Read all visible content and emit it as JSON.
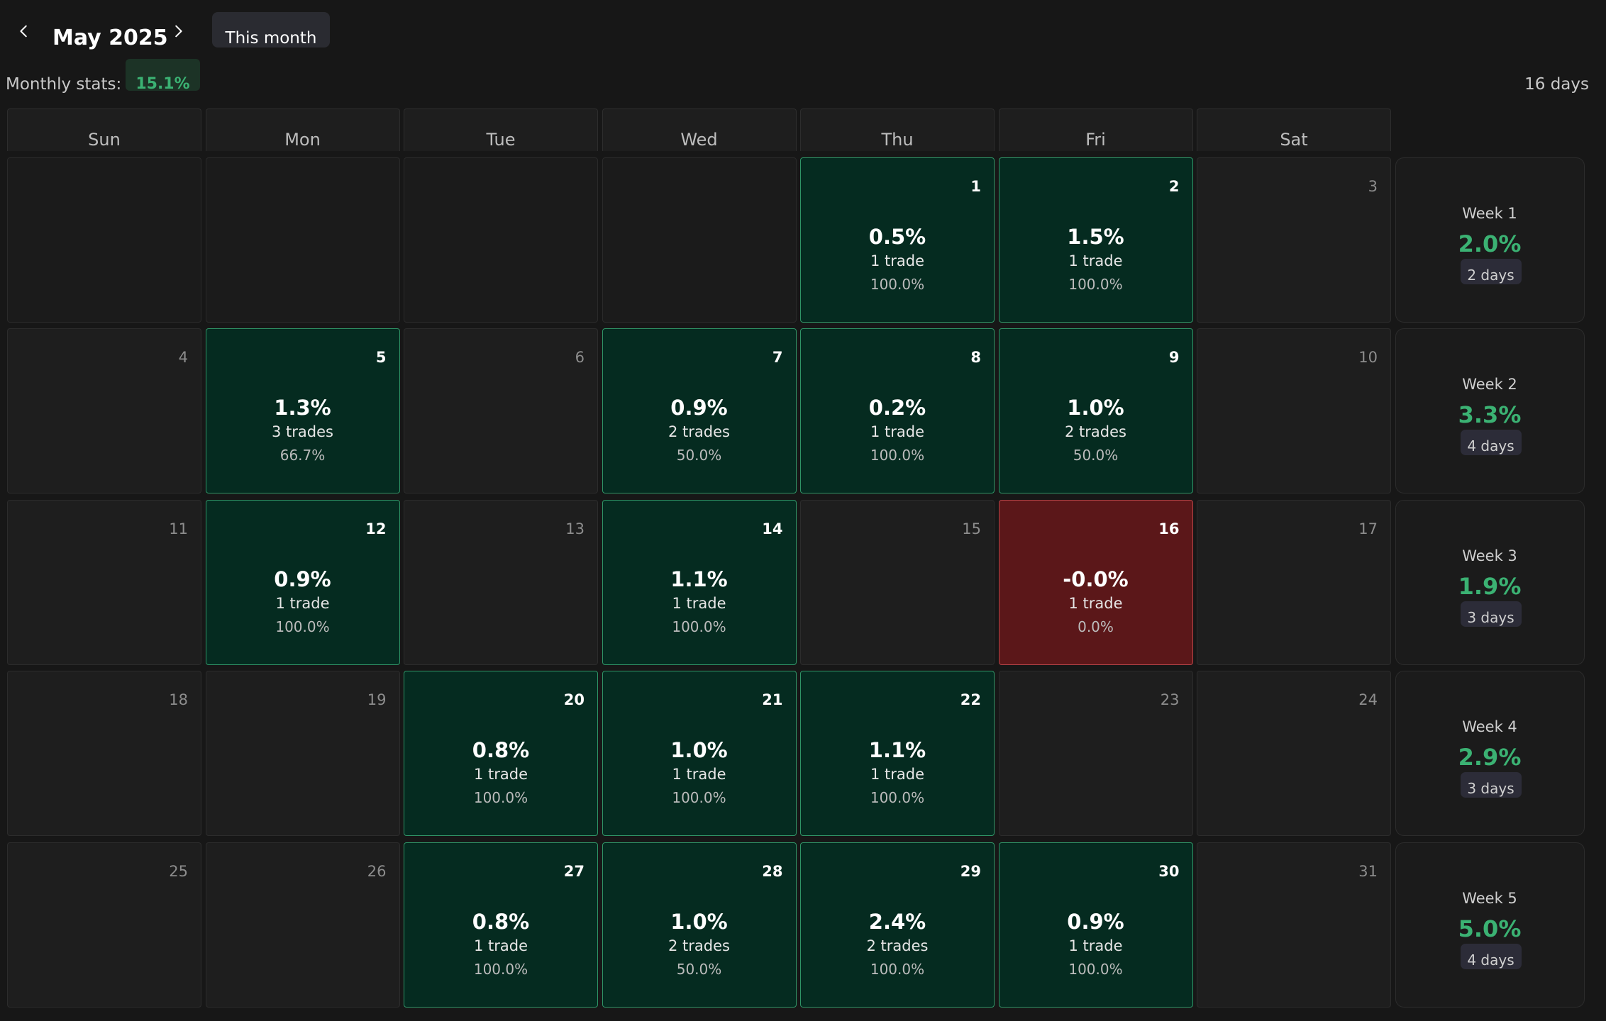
{
  "header": {
    "month_title": "May 2025",
    "this_month_label": "This month",
    "monthly_stats_label": "Monthly stats:",
    "monthly_stats_value": "15.1%",
    "days_count": "16 days"
  },
  "weekdays": [
    "Sun",
    "Mon",
    "Tue",
    "Wed",
    "Thu",
    "Fri",
    "Sat"
  ],
  "colors": {
    "positive_bg": "#052b20",
    "positive_border": "#2f9466",
    "negative_bg": "#5b1719",
    "negative_border": "#b54347",
    "accent_green": "#3bb273"
  },
  "weeks": [
    {
      "label": "Week 1",
      "pct": "2.0%",
      "days": "2 days",
      "cells": [
        {
          "blank": true
        },
        {
          "blank": true
        },
        {
          "blank": true
        },
        {
          "blank": true
        },
        {
          "day": "1",
          "status": "positive",
          "pct": "0.5%",
          "trades": "1 trade",
          "win": "100.0%"
        },
        {
          "day": "2",
          "status": "positive",
          "pct": "1.5%",
          "trades": "1 trade",
          "win": "100.0%"
        },
        {
          "day": "3"
        }
      ]
    },
    {
      "label": "Week 2",
      "pct": "3.3%",
      "days": "4 days",
      "cells": [
        {
          "day": "4"
        },
        {
          "day": "5",
          "status": "positive",
          "pct": "1.3%",
          "trades": "3 trades",
          "win": "66.7%"
        },
        {
          "day": "6"
        },
        {
          "day": "7",
          "status": "positive",
          "pct": "0.9%",
          "trades": "2 trades",
          "win": "50.0%"
        },
        {
          "day": "8",
          "status": "positive",
          "pct": "0.2%",
          "trades": "1 trade",
          "win": "100.0%"
        },
        {
          "day": "9",
          "status": "positive",
          "pct": "1.0%",
          "trades": "2 trades",
          "win": "50.0%"
        },
        {
          "day": "10"
        }
      ]
    },
    {
      "label": "Week 3",
      "pct": "1.9%",
      "days": "3 days",
      "cells": [
        {
          "day": "11"
        },
        {
          "day": "12",
          "status": "positive",
          "pct": "0.9%",
          "trades": "1 trade",
          "win": "100.0%"
        },
        {
          "day": "13"
        },
        {
          "day": "14",
          "status": "positive",
          "pct": "1.1%",
          "trades": "1 trade",
          "win": "100.0%"
        },
        {
          "day": "15"
        },
        {
          "day": "16",
          "status": "negative",
          "pct": "-0.0%",
          "trades": "1 trade",
          "win": "0.0%"
        },
        {
          "day": "17"
        }
      ]
    },
    {
      "label": "Week 4",
      "pct": "2.9%",
      "days": "3 days",
      "cells": [
        {
          "day": "18"
        },
        {
          "day": "19"
        },
        {
          "day": "20",
          "status": "positive",
          "pct": "0.8%",
          "trades": "1 trade",
          "win": "100.0%"
        },
        {
          "day": "21",
          "status": "positive",
          "pct": "1.0%",
          "trades": "1 trade",
          "win": "100.0%"
        },
        {
          "day": "22",
          "status": "positive",
          "pct": "1.1%",
          "trades": "1 trade",
          "win": "100.0%"
        },
        {
          "day": "23"
        },
        {
          "day": "24"
        }
      ]
    },
    {
      "label": "Week 5",
      "pct": "5.0%",
      "days": "4 days",
      "cells": [
        {
          "day": "25"
        },
        {
          "day": "26"
        },
        {
          "day": "27",
          "status": "positive",
          "pct": "0.8%",
          "trades": "1 trade",
          "win": "100.0%"
        },
        {
          "day": "28",
          "status": "positive",
          "pct": "1.0%",
          "trades": "2 trades",
          "win": "50.0%"
        },
        {
          "day": "29",
          "status": "positive",
          "pct": "2.4%",
          "trades": "2 trades",
          "win": "100.0%"
        },
        {
          "day": "30",
          "status": "positive",
          "pct": "0.9%",
          "trades": "1 trade",
          "win": "100.0%"
        },
        {
          "day": "31"
        }
      ]
    }
  ]
}
